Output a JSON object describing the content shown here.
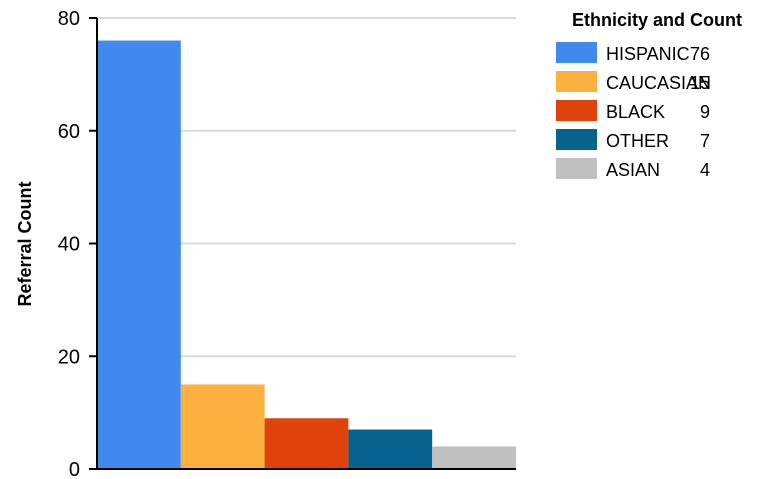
{
  "chart_data": {
    "type": "bar",
    "title": "",
    "xlabel": "",
    "ylabel": "Referral Count",
    "ylim": [
      0,
      80
    ],
    "yticks": [
      0,
      20,
      40,
      60,
      80
    ],
    "grid": true,
    "legend_position": "right",
    "legend_title": "Ethnicity and Count",
    "categories": [
      "HISPANIC",
      "CAUCASIAN",
      "BLACK",
      "OTHER",
      "ASIAN"
    ],
    "values": [
      76,
      15,
      9,
      7,
      4
    ],
    "colors": [
      "#4189ef",
      "#fbb040",
      "#e0420c",
      "#06638f",
      "#c0c0c0"
    ]
  }
}
